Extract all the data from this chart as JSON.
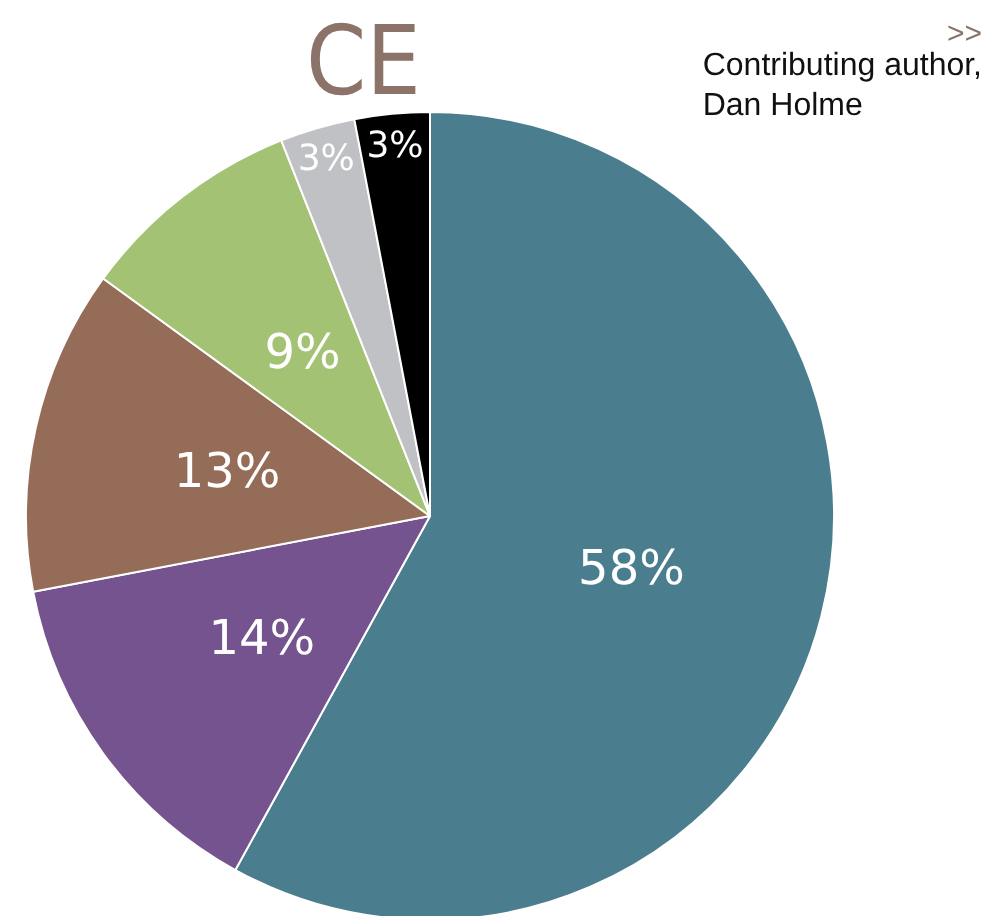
{
  "chart_data": {
    "type": "pie",
    "title": "CE",
    "annotations": [
      ">>",
      "Contributing author,\nDan Holme"
    ],
    "categories": [
      null,
      null,
      null,
      null,
      null,
      null
    ],
    "values": [
      58,
      14,
      13,
      9,
      3,
      3
    ],
    "value_labels": [
      "58%",
      "14%",
      "13%",
      "9%",
      "3%",
      "3%"
    ],
    "colors": [
      "#4a7e8e",
      "#75538f",
      "#956c57",
      "#a4c274",
      "#bfc1c4",
      "#000000"
    ]
  }
}
